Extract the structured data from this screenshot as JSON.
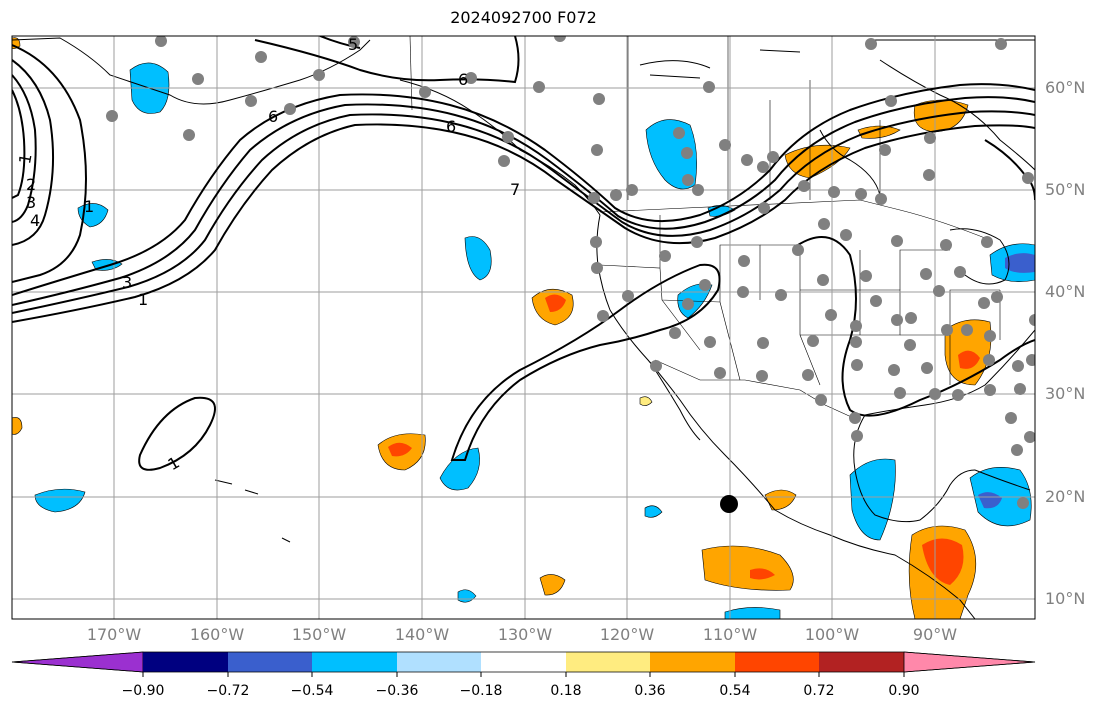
{
  "title": "2024092700 F072",
  "longitude_labels": [
    "170°W",
    "160°W",
    "150°W",
    "140°W",
    "130°W",
    "120°W",
    "110°W",
    "100°W",
    "90°W"
  ],
  "latitude_labels": [
    "60°N",
    "50°N",
    "40°N",
    "30°N",
    "20°N",
    "10°N"
  ],
  "contour_labels": [
    "1",
    "2",
    "3",
    "4",
    "1",
    "3",
    "1",
    "6",
    "6",
    "5",
    "6",
    "7",
    "1"
  ],
  "colorbar": {
    "tick_labels": [
      "−0.90",
      "−0.72",
      "−0.54",
      "−0.36",
      "−0.18",
      "0.18",
      "0.36",
      "0.54",
      "0.72",
      "0.90"
    ],
    "colors": [
      "#9b30d0",
      "#000080",
      "#3a5fcd",
      "#00bfff",
      "#b0e0ff",
      "#ffffff",
      "#ffec80",
      "#ffa500",
      "#ff4500",
      "#b22222",
      "#ff88aa"
    ]
  }
}
